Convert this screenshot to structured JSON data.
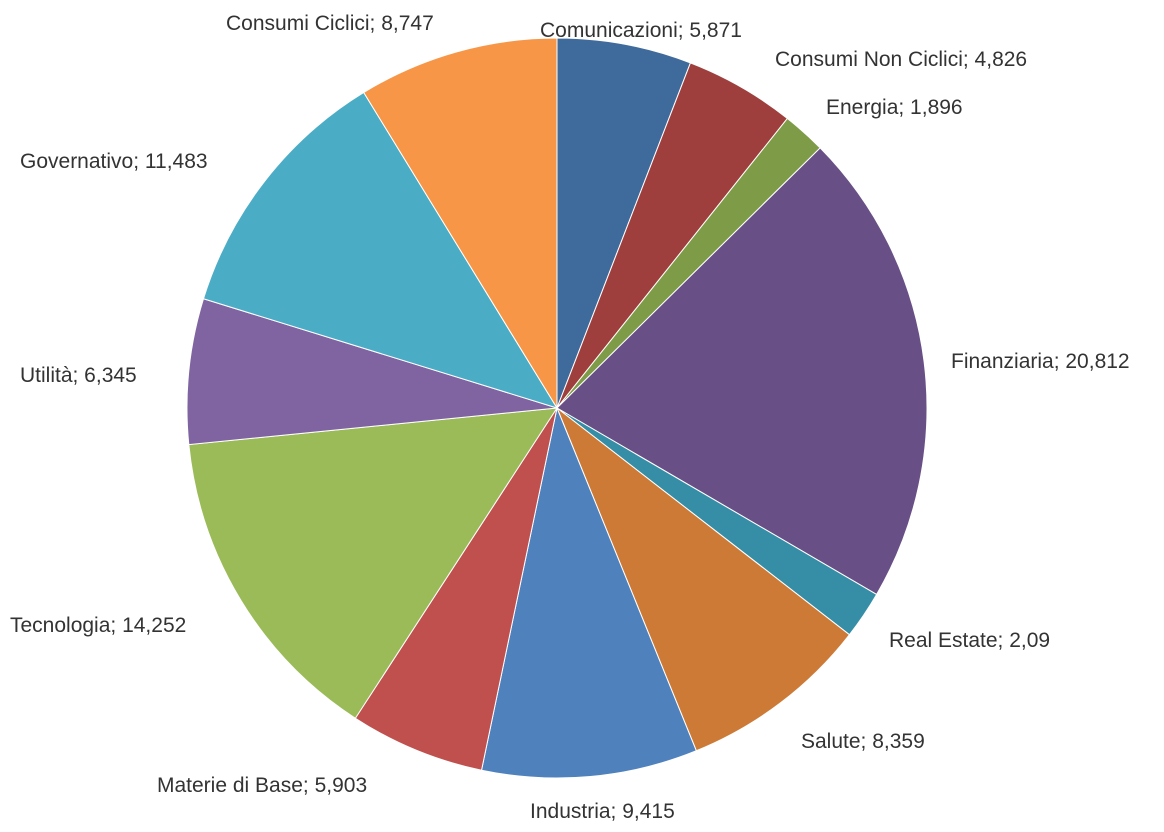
{
  "chart_data": {
    "type": "pie",
    "title": "",
    "slices": [
      {
        "label": "Comunicazioni",
        "value": 5.871,
        "display": "Comunicazioni; 5,871",
        "color": "#3F6A9C"
      },
      {
        "label": "Consumi Non Ciclici",
        "value": 4.826,
        "display": "Consumi Non Ciclici; 4,826",
        "color": "#9E3F3D"
      },
      {
        "label": "Energia",
        "value": 1.896,
        "display": "Energia; 1,896",
        "color": "#7E9C47"
      },
      {
        "label": "Finanziaria",
        "value": 20.812,
        "display": "Finanziaria; 20,812",
        "color": "#684F86"
      },
      {
        "label": "Real Estate",
        "value": 2.09,
        "display": "Real Estate; 2,09",
        "color": "#368EA6"
      },
      {
        "label": "Salute",
        "value": 8.359,
        "display": "Salute; 8,359",
        "color": "#CD7A37"
      },
      {
        "label": "Industria",
        "value": 9.415,
        "display": "Industria; 9,415",
        "color": "#4F81BD"
      },
      {
        "label": "Materie di Base",
        "value": 5.903,
        "display": "Materie di Base; 5,903",
        "color": "#C0504D"
      },
      {
        "label": "Tecnologia",
        "value": 14.252,
        "display": "Tecnologia; 14,252",
        "color": "#9BBB59"
      },
      {
        "label": "Utilità",
        "value": 6.345,
        "display": "Utilità; 6,345",
        "color": "#8064A2"
      },
      {
        "label": "Governativo",
        "value": 11.483,
        "display": "Governativo; 11,483",
        "color": "#4BACC6"
      },
      {
        "label": "Consumi Ciclici",
        "value": 8.747,
        "display": "Consumi Ciclici; 8,747",
        "color": "#F79646"
      }
    ]
  }
}
